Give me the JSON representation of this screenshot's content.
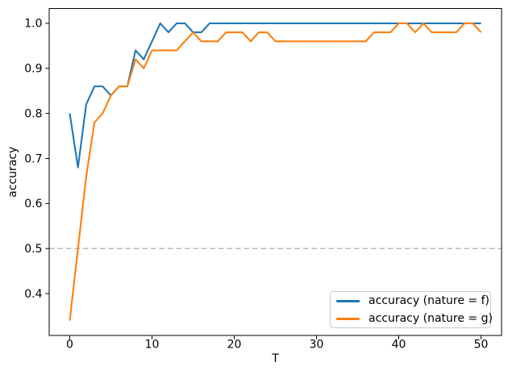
{
  "figure": {
    "background": "#ffffff",
    "plot_border_color": "#000000"
  },
  "chart_data": {
    "type": "line",
    "title": "",
    "xlabel": "T",
    "ylabel": "accuracy",
    "xlim": [
      -2.5,
      52.5
    ],
    "ylim": [
      0.307,
      1.033
    ],
    "x_ticks": [
      0,
      10,
      20,
      30,
      40,
      50
    ],
    "y_ticks": [
      0.4,
      0.5,
      0.6,
      0.7,
      0.8,
      0.9,
      1.0
    ],
    "grid": false,
    "legend_position": "lower right",
    "threshold_line": {
      "y": 0.5,
      "style": "dashed",
      "color": "#b0b0b0"
    },
    "x": [
      0,
      1,
      2,
      3,
      4,
      5,
      6,
      7,
      8,
      9,
      10,
      11,
      12,
      13,
      14,
      15,
      16,
      17,
      18,
      19,
      20,
      21,
      22,
      23,
      24,
      25,
      26,
      27,
      28,
      29,
      30,
      31,
      32,
      33,
      34,
      35,
      36,
      37,
      38,
      39,
      40,
      41,
      42,
      43,
      44,
      45,
      46,
      47,
      48,
      49,
      50
    ],
    "series": [
      {
        "name": "accuracy (nature = f)",
        "color": "#1f77b4",
        "values": [
          0.8,
          0.68,
          0.82,
          0.86,
          0.86,
          0.84,
          0.86,
          0.86,
          0.94,
          0.92,
          0.96,
          1.0,
          0.98,
          1.0,
          1.0,
          0.98,
          0.98,
          1.0,
          1.0,
          1.0,
          1.0,
          1.0,
          1.0,
          1.0,
          1.0,
          1.0,
          1.0,
          1.0,
          1.0,
          1.0,
          1.0,
          1.0,
          1.0,
          1.0,
          1.0,
          1.0,
          1.0,
          1.0,
          1.0,
          1.0,
          1.0,
          1.0,
          1.0,
          1.0,
          1.0,
          1.0,
          1.0,
          1.0,
          1.0,
          1.0,
          1.0
        ]
      },
      {
        "name": "accuracy (nature = g)",
        "color": "#ff7f0e",
        "values": [
          0.34,
          0.5,
          0.66,
          0.78,
          0.8,
          0.84,
          0.86,
          0.86,
          0.92,
          0.9,
          0.94,
          0.94,
          0.94,
          0.94,
          0.96,
          0.98,
          0.96,
          0.96,
          0.96,
          0.98,
          0.98,
          0.98,
          0.96,
          0.98,
          0.98,
          0.96,
          0.96,
          0.96,
          0.96,
          0.96,
          0.96,
          0.96,
          0.96,
          0.96,
          0.96,
          0.96,
          0.96,
          0.98,
          0.98,
          0.98,
          1.0,
          1.0,
          0.98,
          1.0,
          0.98,
          0.98,
          0.98,
          0.98,
          1.0,
          1.0,
          0.98
        ]
      }
    ]
  }
}
